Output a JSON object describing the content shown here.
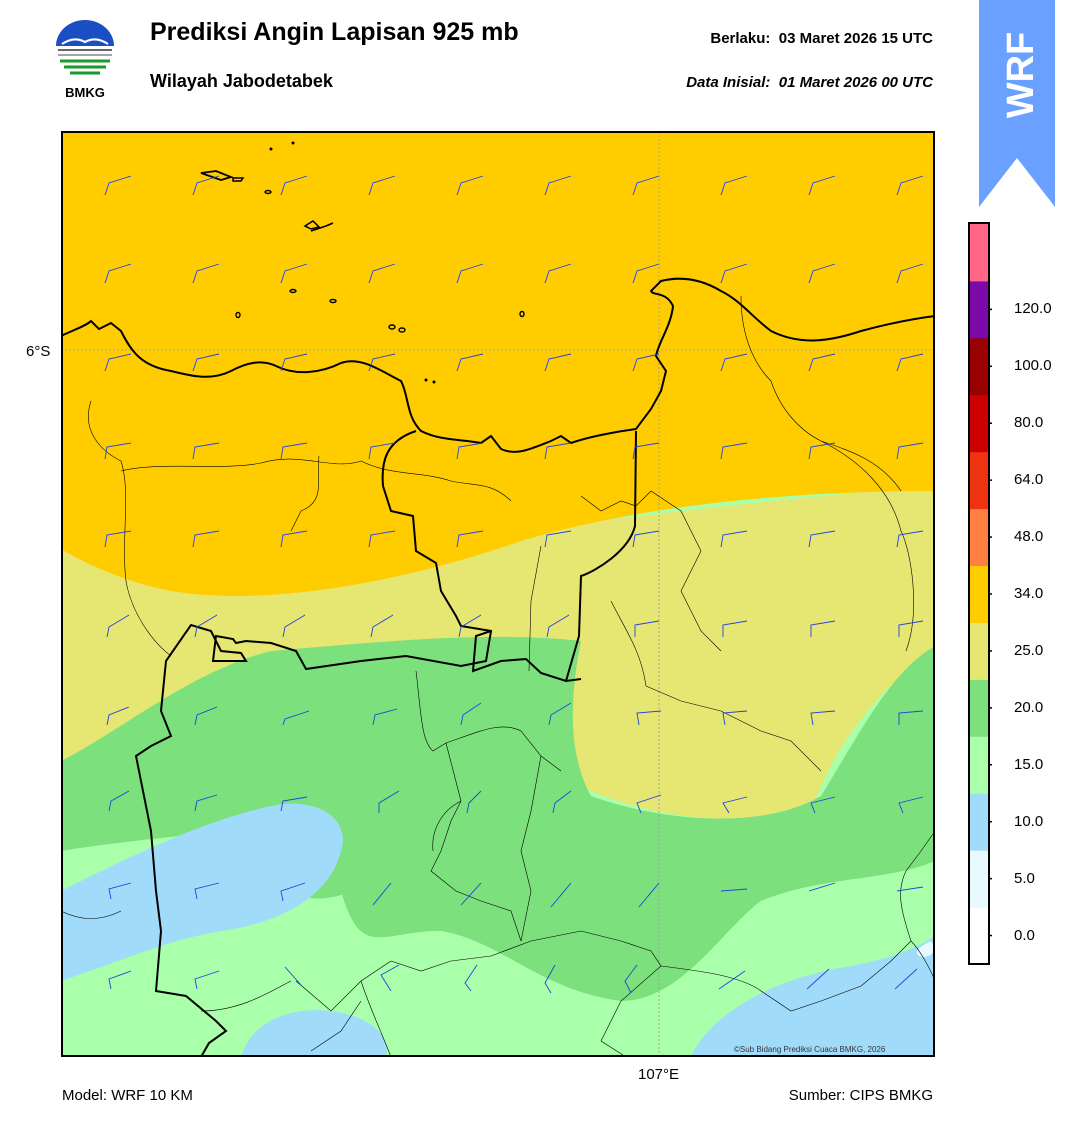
{
  "header": {
    "title": "Prediksi Angin Lapisan 925 mb",
    "subtitle": "Wilayah Jabodetabek",
    "valid_label": "Berlaku:",
    "valid_time": "03 Maret 2026 15 UTC",
    "init_label": "Data Inisial:",
    "init_time": "01 Maret 2026 00 UTC"
  },
  "logo": {
    "text": "BMKG",
    "icon": "bmkg-logo-icon"
  },
  "badge": {
    "text": "WRF",
    "color": "#6aa0ff"
  },
  "axes": {
    "lat_label": "6°S",
    "lon_label": "107°E"
  },
  "footer": {
    "model": "Model: WRF 10 KM",
    "source": "Sumber: CIPS BMKG",
    "credit": "©Sub Bidang Prediksi Cuaca BMKG, 2026"
  },
  "legend": {
    "ticks": [
      "0.0",
      "5.0",
      "10.0",
      "15.0",
      "20.0",
      "25.0",
      "34.0",
      "48.0",
      "64.0",
      "80.0",
      "100.0",
      "120.0"
    ],
    "colors": [
      "#ffffff",
      "#e8faff",
      "#a0dcfa",
      "#aaffaa",
      "#7ce07c",
      "#e6e673",
      "#ffcc00",
      "#ff8040",
      "#ee3311",
      "#cc0000",
      "#990000",
      "#7b0aa8",
      "#ff6688"
    ]
  }
}
